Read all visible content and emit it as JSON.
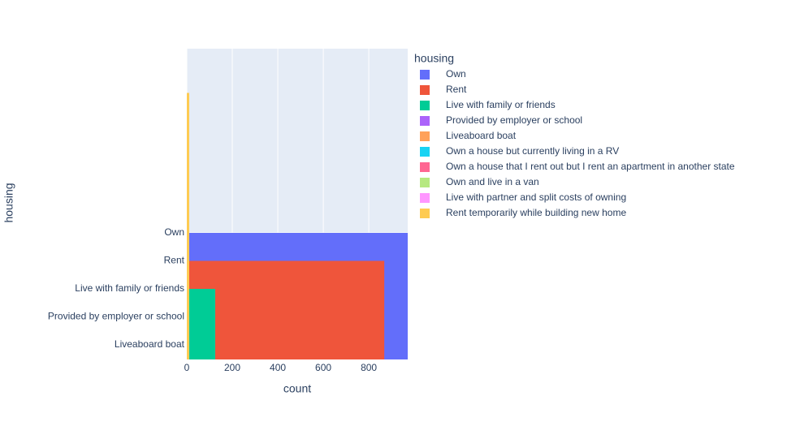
{
  "chart_data": {
    "type": "bar",
    "orientation": "h",
    "xlabel": "count",
    "ylabel": "housing",
    "legend_title": "housing",
    "categories": [
      "Own",
      "Rent",
      "Live with family or friends",
      "Provided by employer or school",
      "Liveaboard boat",
      null,
      null,
      null,
      null,
      null
    ],
    "xlim": [
      0,
      971
    ],
    "xticks": [
      0,
      200,
      400,
      600,
      800
    ],
    "grid": true,
    "series": [
      {
        "name": "Own",
        "color": "#636efa",
        "values": [
          971,
          null,
          null,
          null,
          null,
          null,
          null,
          null,
          null,
          null
        ]
      },
      {
        "name": "Rent",
        "color": "#ef553b",
        "values": [
          null,
          868,
          null,
          null,
          null,
          null,
          null,
          null,
          null,
          null
        ]
      },
      {
        "name": "Live with family or friends",
        "color": "#00cc96",
        "values": [
          null,
          null,
          125,
          null,
          null,
          null,
          null,
          null,
          null,
          null
        ]
      },
      {
        "name": "Provided by employer or school",
        "color": "#ab63fa",
        "values": [
          null,
          null,
          null,
          11,
          null,
          null,
          null,
          null,
          null,
          null
        ]
      },
      {
        "name": "Liveaboard boat",
        "color": "#ffa15a",
        "values": [
          null,
          null,
          null,
          null,
          2,
          null,
          null,
          null,
          null,
          null
        ]
      },
      {
        "name": "Own a house but currently living in a RV",
        "color": "#19d3f3",
        "values": [
          null,
          null,
          null,
          null,
          null,
          1,
          null,
          null,
          null,
          null
        ]
      },
      {
        "name": "Own a house that I rent out but I rent an apartment in another state",
        "color": "#ff6692",
        "values": [
          null,
          null,
          null,
          null,
          null,
          null,
          1,
          null,
          null,
          null
        ]
      },
      {
        "name": "Own and live in a van",
        "color": "#b6e880",
        "values": [
          null,
          null,
          null,
          null,
          null,
          null,
          null,
          1,
          null,
          null
        ]
      },
      {
        "name": "Live with partner and split costs of owning",
        "color": "#ff97ff",
        "values": [
          null,
          null,
          null,
          null,
          null,
          null,
          null,
          null,
          1,
          null
        ]
      },
      {
        "name": "Rent temporarily while building new home",
        "color": "#fecb52",
        "values": [
          null,
          null,
          null,
          null,
          null,
          null,
          null,
          null,
          null,
          1
        ]
      }
    ]
  }
}
